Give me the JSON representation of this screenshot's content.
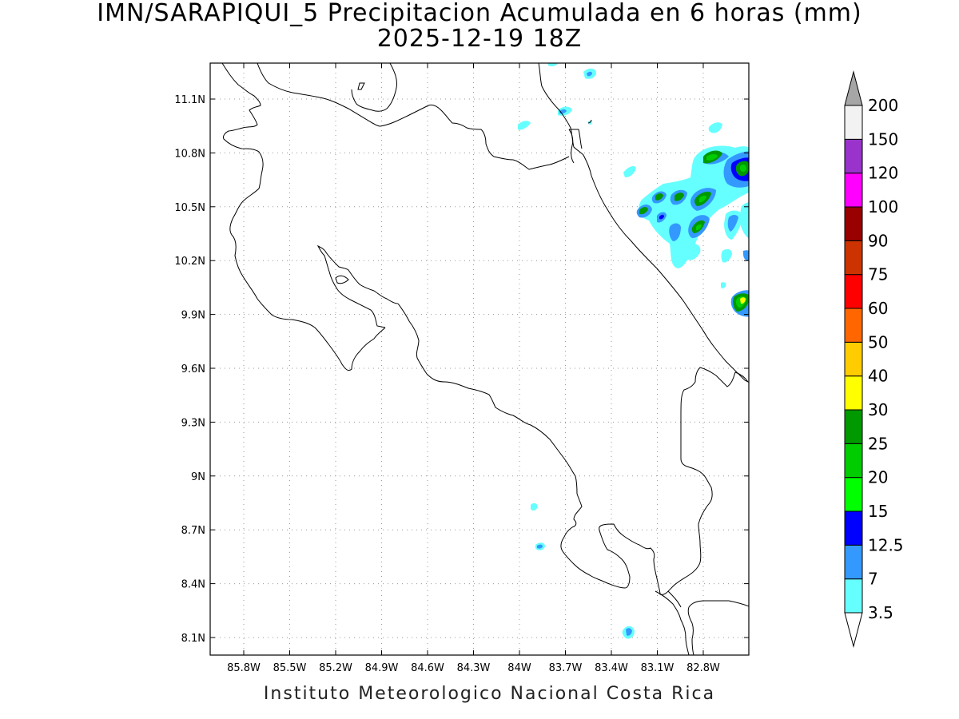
{
  "title_line1": "IMN/SARAPIQUI_5 Precipitacion Acumulada en 6 horas (mm)",
  "title_line2": "2025-12-19 18Z",
  "footer": "Instituto Meteorologico Nacional Costa Rica",
  "axes": {
    "lon_ticks": [
      "85.8W",
      "85.5W",
      "85.2W",
      "84.9W",
      "84.6W",
      "84.3W",
      "84W",
      "83.7W",
      "83.4W",
      "83.1W",
      "82.8W"
    ],
    "lat_ticks": [
      "11.1N",
      "10.8N",
      "10.5N",
      "10.2N",
      "9.9N",
      "9.6N",
      "9.3N",
      "9N",
      "8.7N",
      "8.4N",
      "8.1N"
    ],
    "grid": "dotted"
  },
  "colorbar": {
    "labels": [
      "3.5",
      "7",
      "12.5",
      "15",
      "20",
      "25",
      "30",
      "40",
      "50",
      "60",
      "75",
      "90",
      "100",
      "120",
      "150",
      "200"
    ],
    "colors": [
      "#66ffff",
      "#3399ff",
      "#0000ff",
      "#00ff00",
      "#00cc00",
      "#009900",
      "#ffff00",
      "#ffcc00",
      "#ff6600",
      "#ff0000",
      "#cc3300",
      "#990000",
      "#ff00ff",
      "#9933cc",
      "#f2f2f2"
    ],
    "top_arrow_color": "#a6a6a6",
    "bottom_arrow_color": "#ffffff"
  }
}
